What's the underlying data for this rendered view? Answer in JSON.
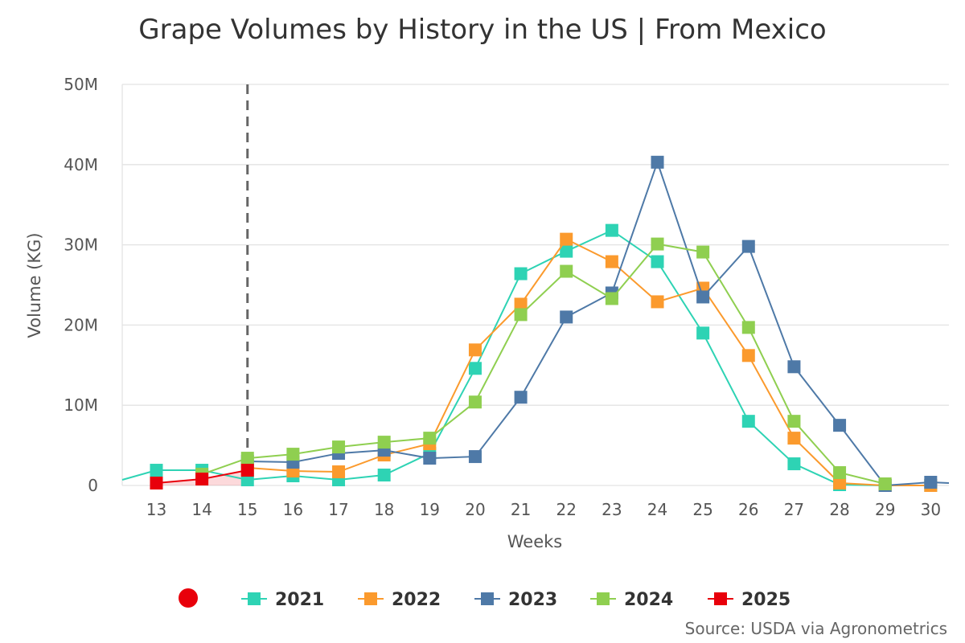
{
  "chart_data": {
    "type": "line",
    "title": "Grape Volumes by History in the US | From Mexico",
    "xlabel": "Weeks",
    "ylabel": "Volume (KG)",
    "xlim": [
      12.25,
      30.4
    ],
    "ylim": [
      0,
      50000000
    ],
    "yticks": [
      0,
      10000000,
      20000000,
      30000000,
      40000000,
      50000000
    ],
    "ytick_labels": [
      "0",
      "10M",
      "20M",
      "30M",
      "40M",
      "50M"
    ],
    "xticks": [
      13,
      14,
      15,
      16,
      17,
      18,
      19,
      20,
      21,
      22,
      23,
      24,
      25,
      26,
      27,
      28,
      29,
      30
    ],
    "current_week_marker": 15,
    "grid": true,
    "legend_position": "bottom",
    "series": [
      {
        "name": "2021",
        "color": "#2ed3b4",
        "points": [
          [
            12.25,
            700000
          ],
          [
            13,
            1900000
          ],
          [
            14,
            1900000
          ],
          [
            15,
            700000
          ],
          [
            16,
            1200000
          ],
          [
            17,
            700000
          ],
          [
            18,
            1300000
          ],
          [
            19,
            4000000
          ],
          [
            20,
            14600000
          ],
          [
            21,
            26400000
          ],
          [
            22,
            29200000
          ],
          [
            23,
            31800000
          ],
          [
            24,
            27900000
          ],
          [
            25,
            19000000
          ],
          [
            26,
            8000000
          ],
          [
            27,
            2700000
          ],
          [
            28,
            100000
          ],
          [
            29,
            0
          ],
          [
            30,
            0
          ]
        ]
      },
      {
        "name": "2022",
        "color": "#fb9a2d",
        "points": [
          [
            15,
            2200000
          ],
          [
            16,
            1800000
          ],
          [
            17,
            1700000
          ],
          [
            18,
            3800000
          ],
          [
            19,
            5200000
          ],
          [
            20,
            16900000
          ],
          [
            21,
            22600000
          ],
          [
            22,
            30700000
          ],
          [
            23,
            27900000
          ],
          [
            24,
            22900000
          ],
          [
            25,
            24600000
          ],
          [
            26,
            16200000
          ],
          [
            27,
            5900000
          ],
          [
            28,
            300000
          ],
          [
            29,
            0
          ],
          [
            30,
            0
          ]
        ]
      },
      {
        "name": "2023",
        "color": "#4e79a7",
        "points": [
          [
            15,
            3000000
          ],
          [
            16,
            2900000
          ],
          [
            17,
            4000000
          ],
          [
            18,
            4400000
          ],
          [
            19,
            3400000
          ],
          [
            20,
            3600000
          ],
          [
            21,
            11000000
          ],
          [
            22,
            21000000
          ],
          [
            23,
            24000000
          ],
          [
            24,
            40300000
          ],
          [
            25,
            23500000
          ],
          [
            26,
            29800000
          ],
          [
            27,
            14800000
          ],
          [
            28,
            7500000
          ],
          [
            29,
            0
          ],
          [
            30,
            400000
          ],
          [
            30.4,
            300000
          ]
        ]
      },
      {
        "name": "2024",
        "color": "#8fcf50",
        "points": [
          [
            14,
            1400000
          ],
          [
            15,
            3400000
          ],
          [
            16,
            3900000
          ],
          [
            17,
            4800000
          ],
          [
            18,
            5400000
          ],
          [
            19,
            5900000
          ],
          [
            20,
            10400000
          ],
          [
            21,
            21300000
          ],
          [
            22,
            26700000
          ],
          [
            23,
            23300000
          ],
          [
            24,
            30100000
          ],
          [
            25,
            29100000
          ],
          [
            26,
            19700000
          ],
          [
            27,
            8000000
          ],
          [
            28,
            1600000
          ],
          [
            29,
            200000
          ]
        ]
      },
      {
        "name": "2025",
        "color": "#e8000b",
        "points": [
          [
            13,
            300000
          ],
          [
            14,
            800000
          ],
          [
            15,
            1900000
          ]
        ]
      }
    ],
    "source": "Source: USDA via Agronometrics"
  }
}
